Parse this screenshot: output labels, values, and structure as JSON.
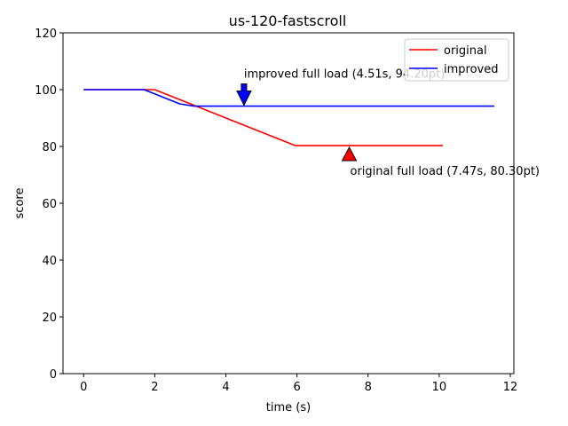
{
  "chart_data": {
    "type": "line",
    "title": "us-120-fastscroll",
    "xlabel": "time (s)",
    "ylabel": "score",
    "xlim": [
      -0.58,
      12.1
    ],
    "ylim": [
      0,
      120
    ],
    "xticks": [
      0,
      2,
      4,
      6,
      8,
      10,
      12
    ],
    "yticks": [
      0,
      20,
      40,
      60,
      80,
      100,
      120
    ],
    "grid": false,
    "legend_position": "top-right",
    "series": [
      {
        "name": "original",
        "color": "#ff0000",
        "points": [
          [
            0,
            100
          ],
          [
            2.0,
            100
          ],
          [
            5.95,
            80.3
          ],
          [
            10.1,
            80.3
          ]
        ]
      },
      {
        "name": "improved",
        "color": "#0000ff",
        "points": [
          [
            0,
            100
          ],
          [
            1.7,
            100
          ],
          [
            2.7,
            95.0
          ],
          [
            3.1,
            94.2
          ],
          [
            11.55,
            94.2
          ]
        ]
      }
    ],
    "annotations": [
      {
        "text": "improved full load (4.51s, 94.20pt)",
        "x": 4.51,
        "y": 94.2,
        "marker": "down-arrow",
        "color": "#0000ff"
      },
      {
        "text": "original full load (7.47s, 80.30pt)",
        "x": 7.47,
        "y": 80.3,
        "marker": "up-triangle",
        "color": "#ff0000"
      }
    ]
  }
}
